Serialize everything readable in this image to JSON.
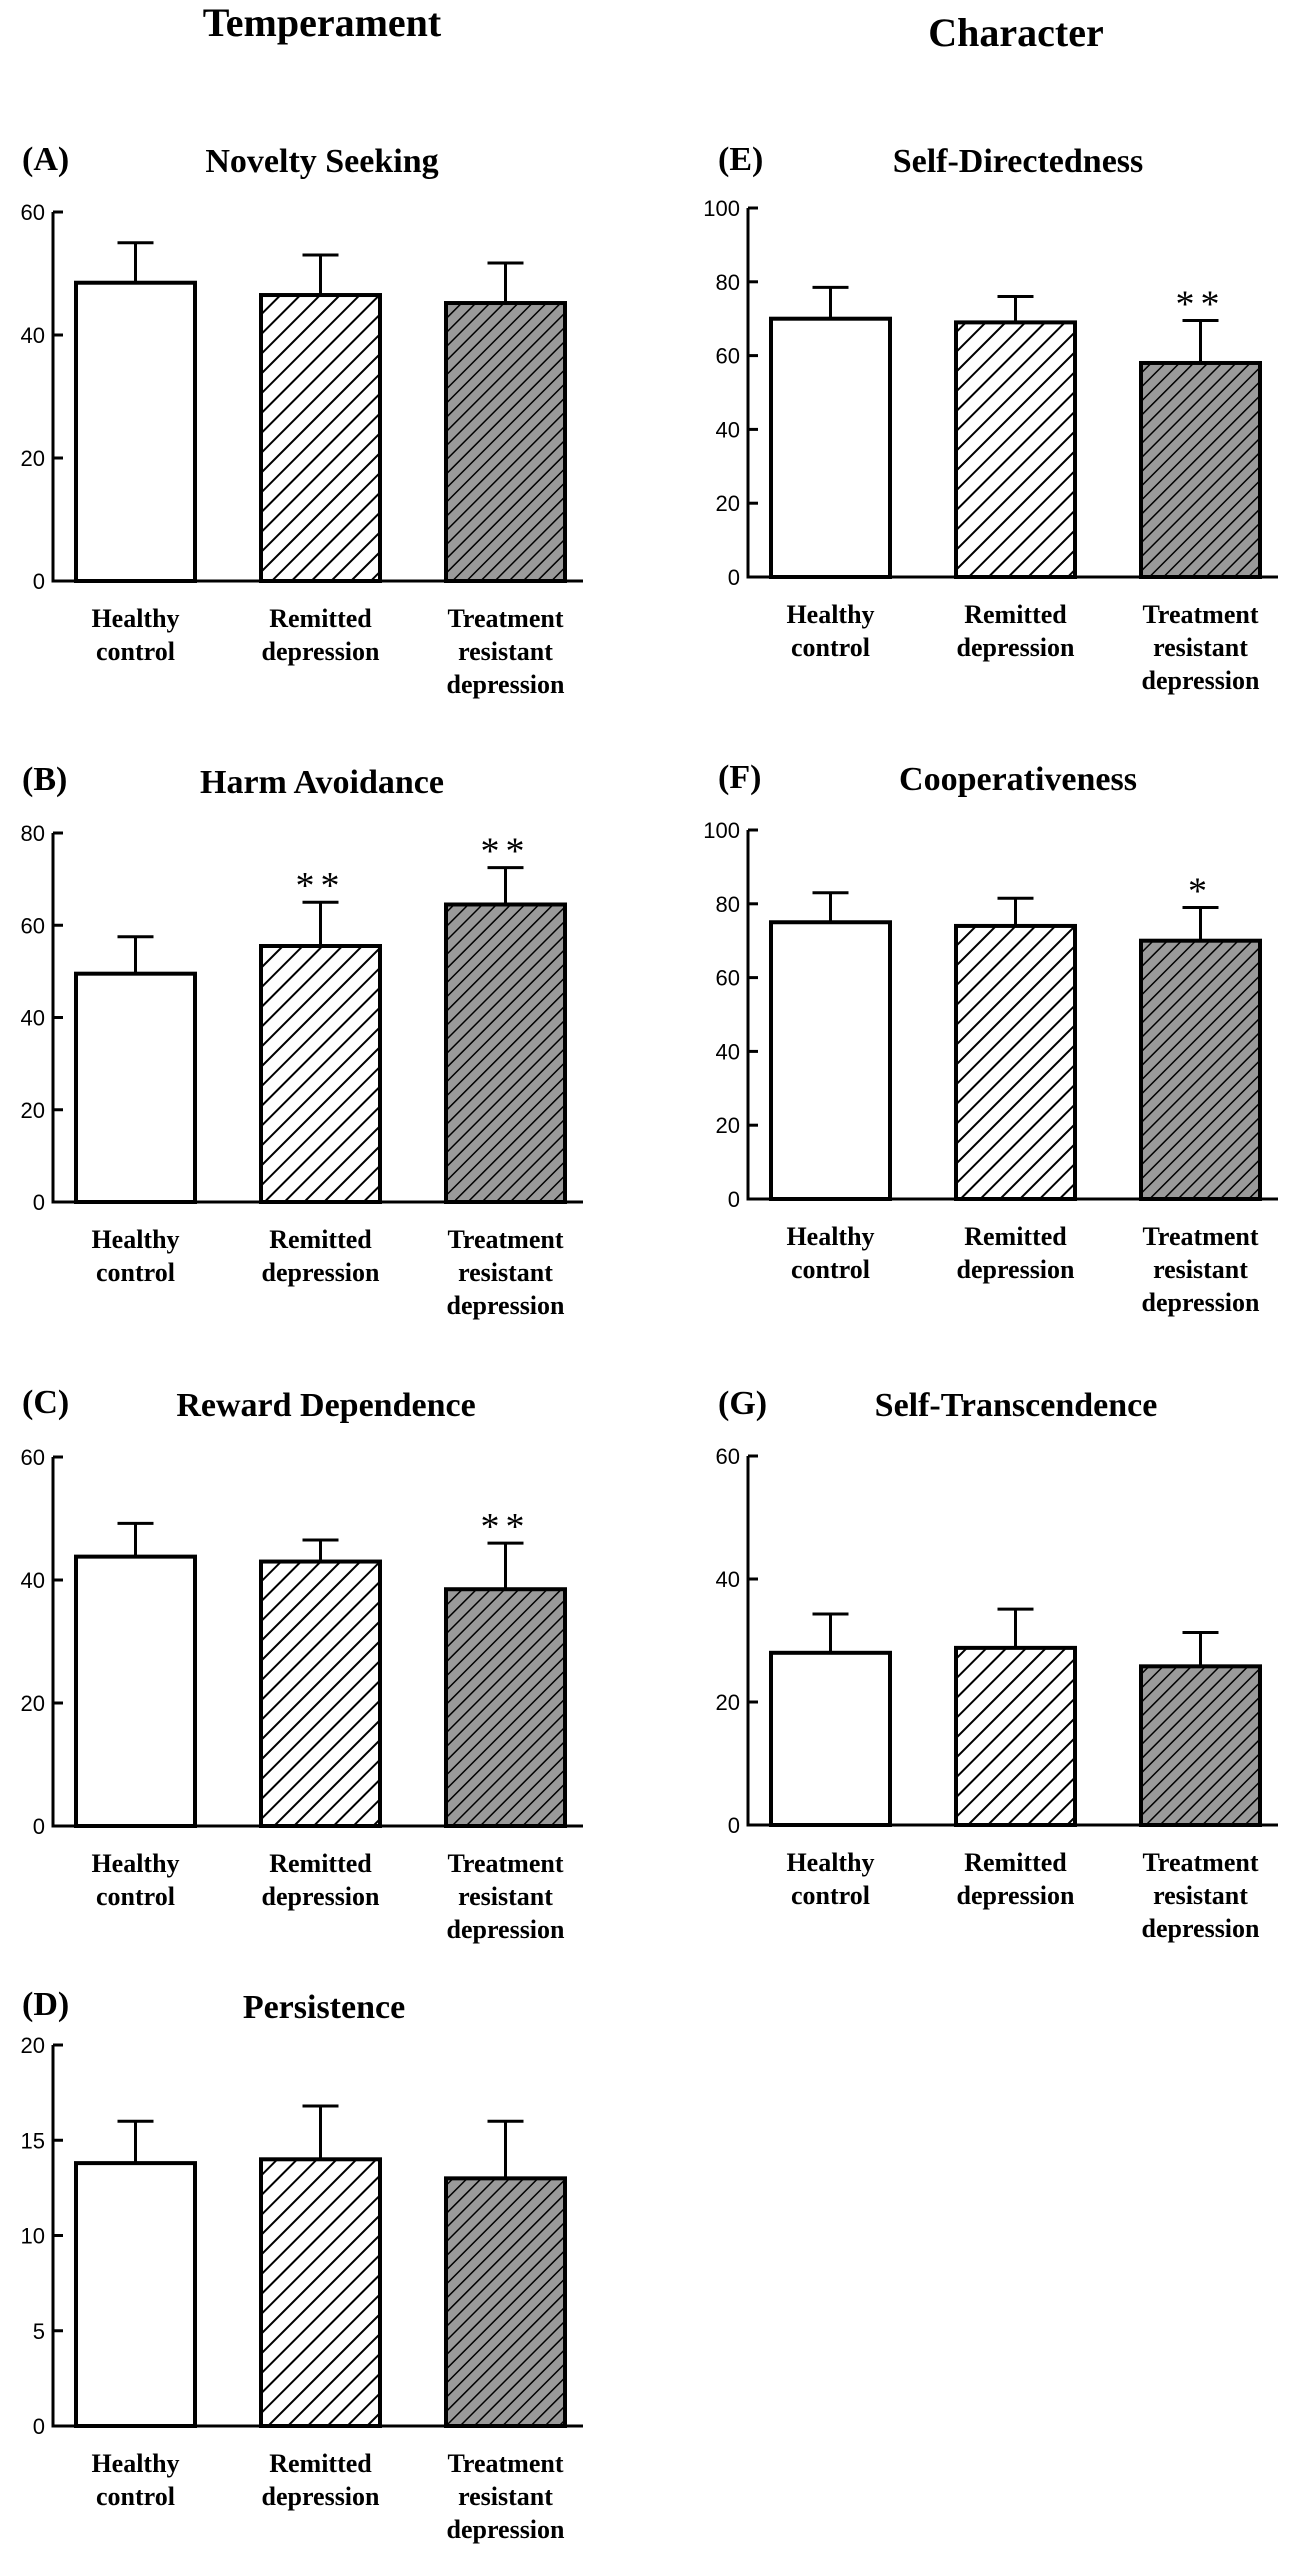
{
  "headings": {
    "temperament": "Temperament",
    "character": "Character"
  },
  "style": {
    "bar_fill_control": "#ffffff",
    "bar_fill_remitted": "#ffffff",
    "bar_fill_trd": "#9a9a9a",
    "line_color": "#000000"
  },
  "chart_data": [
    {
      "id": "A",
      "panel_label": "(A)",
      "title": "Novelty Seeking",
      "type": "bar",
      "categories": [
        [
          "Healthy",
          "control"
        ],
        [
          "Remitted",
          "depression"
        ],
        [
          "Treatment",
          "resistant",
          "depression"
        ]
      ],
      "values": [
        48.5,
        46.5,
        45.2
      ],
      "errors": [
        6.5,
        6.5,
        6.5
      ],
      "significance": [
        "",
        "",
        ""
      ],
      "ylim": [
        0,
        60
      ],
      "yticks": [
        0,
        20,
        40,
        60
      ]
    },
    {
      "id": "B",
      "panel_label": "(B)",
      "title": "Harm Avoidance",
      "type": "bar",
      "categories": [
        [
          "Healthy",
          "control"
        ],
        [
          "Remitted",
          "depression"
        ],
        [
          "Treatment",
          "resistant",
          "depression"
        ]
      ],
      "values": [
        49.5,
        55.5,
        64.5
      ],
      "errors": [
        8,
        9.5,
        8
      ],
      "significance": [
        "",
        "**",
        "**"
      ],
      "ylim": [
        0,
        80
      ],
      "yticks": [
        0,
        20,
        40,
        60,
        80
      ]
    },
    {
      "id": "C",
      "panel_label": "(C)",
      "title": "Reward Dependence",
      "type": "bar",
      "categories": [
        [
          "Healthy",
          "control"
        ],
        [
          "Remitted",
          "depression"
        ],
        [
          "Treatment",
          "resistant",
          "depression"
        ]
      ],
      "values": [
        43.8,
        43.0,
        38.5
      ],
      "errors": [
        5.4,
        3.5,
        7.5
      ],
      "significance": [
        "",
        "",
        "**"
      ],
      "ylim": [
        0,
        60
      ],
      "yticks": [
        0,
        20,
        40,
        60
      ]
    },
    {
      "id": "D",
      "panel_label": "(D)",
      "title": "Persistence",
      "type": "bar",
      "categories": [
        [
          "Healthy",
          "control"
        ],
        [
          "Remitted",
          "depression"
        ],
        [
          "Treatment",
          "resistant",
          "depression"
        ]
      ],
      "values": [
        13.8,
        14.0,
        13.0
      ],
      "errors": [
        2.2,
        2.8,
        3.0
      ],
      "significance": [
        "",
        "",
        ""
      ],
      "ylim": [
        0,
        20
      ],
      "yticks": [
        0,
        5,
        10,
        15,
        20
      ]
    },
    {
      "id": "E",
      "panel_label": "(E)",
      "title": "Self-Directedness",
      "type": "bar",
      "categories": [
        [
          "Healthy",
          "control"
        ],
        [
          "Remitted",
          "depression"
        ],
        [
          "Treatment",
          "resistant",
          "depression"
        ]
      ],
      "values": [
        70,
        69,
        58
      ],
      "errors": [
        8.5,
        7,
        11.5
      ],
      "significance": [
        "",
        "",
        "**"
      ],
      "ylim": [
        0,
        100
      ],
      "yticks": [
        0,
        20,
        40,
        60,
        80,
        100
      ]
    },
    {
      "id": "F",
      "panel_label": "(F)",
      "title": "Cooperativeness",
      "type": "bar",
      "categories": [
        [
          "Healthy",
          "control"
        ],
        [
          "Remitted",
          "depression"
        ],
        [
          "Treatment",
          "resistant",
          "depression"
        ]
      ],
      "values": [
        75,
        74,
        70
      ],
      "errors": [
        8,
        7.5,
        9
      ],
      "significance": [
        "",
        "",
        "*"
      ],
      "ylim": [
        0,
        100
      ],
      "yticks": [
        0,
        20,
        40,
        60,
        80,
        100
      ]
    },
    {
      "id": "G",
      "panel_label": "(G)",
      "title": "Self-Transcendence",
      "type": "bar",
      "categories": [
        [
          "Healthy",
          "control"
        ],
        [
          "Remitted",
          "depression"
        ],
        [
          "Treatment",
          "resistant",
          "depression"
        ]
      ],
      "values": [
        28,
        28.8,
        25.8
      ],
      "errors": [
        6.3,
        6.3,
        5.5
      ],
      "significance": [
        "",
        "",
        ""
      ],
      "ylim": [
        0,
        60
      ],
      "yticks": [
        0,
        20,
        40,
        60
      ]
    }
  ]
}
